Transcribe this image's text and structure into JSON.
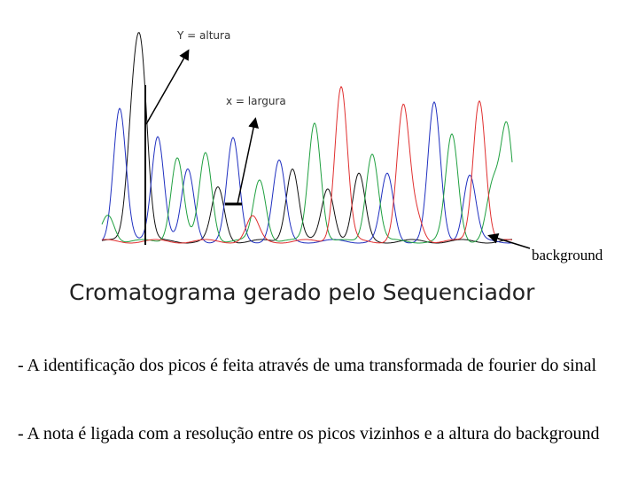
{
  "labels": {
    "height": "Y = altura",
    "width": "x = largura",
    "background": "background"
  },
  "title": "Cromatograma gerado pelo Sequenciador",
  "bullets": [
    "- A identificação dos picos é feita através de uma transformada de fourier do sinal",
    "- A nota é ligada com a resolução entre os picos vizinhos e a altura do background"
  ]
}
